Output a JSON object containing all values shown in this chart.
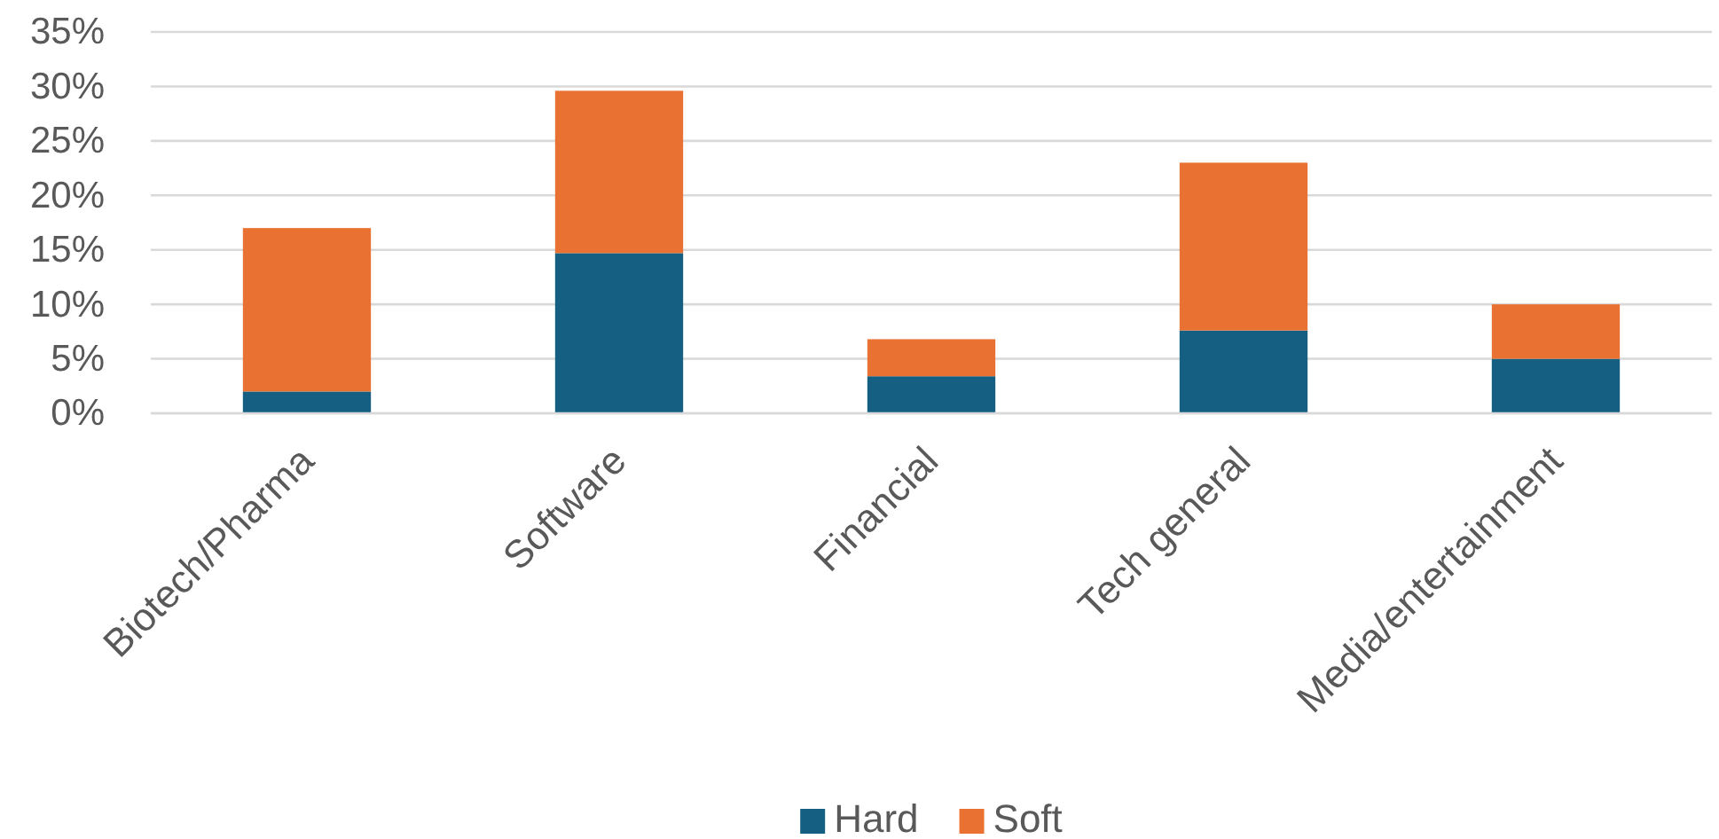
{
  "chart_data": {
    "type": "bar",
    "stacked": true,
    "categories": [
      "Biotech/Pharma",
      "Software",
      "Financial",
      "Tech general",
      "Media/entertainment"
    ],
    "series": [
      {
        "name": "Hard",
        "color": "#156082",
        "values": [
          2.0,
          14.7,
          3.4,
          7.6,
          5.0
        ]
      },
      {
        "name": "Soft",
        "color": "#e97132",
        "values": [
          15.0,
          14.9,
          3.4,
          15.4,
          5.0
        ]
      }
    ],
    "ylim": [
      0,
      35
    ],
    "yticks": [
      {
        "value": 0,
        "label": "0%"
      },
      {
        "value": 5,
        "label": "5%"
      },
      {
        "value": 10,
        "label": "10%"
      },
      {
        "value": 15,
        "label": "15%"
      },
      {
        "value": 20,
        "label": "20%"
      },
      {
        "value": 25,
        "label": "25%"
      },
      {
        "value": 30,
        "label": "30%"
      },
      {
        "value": 35,
        "label": "35%"
      }
    ],
    "grid": "y",
    "legend": "bottom"
  }
}
